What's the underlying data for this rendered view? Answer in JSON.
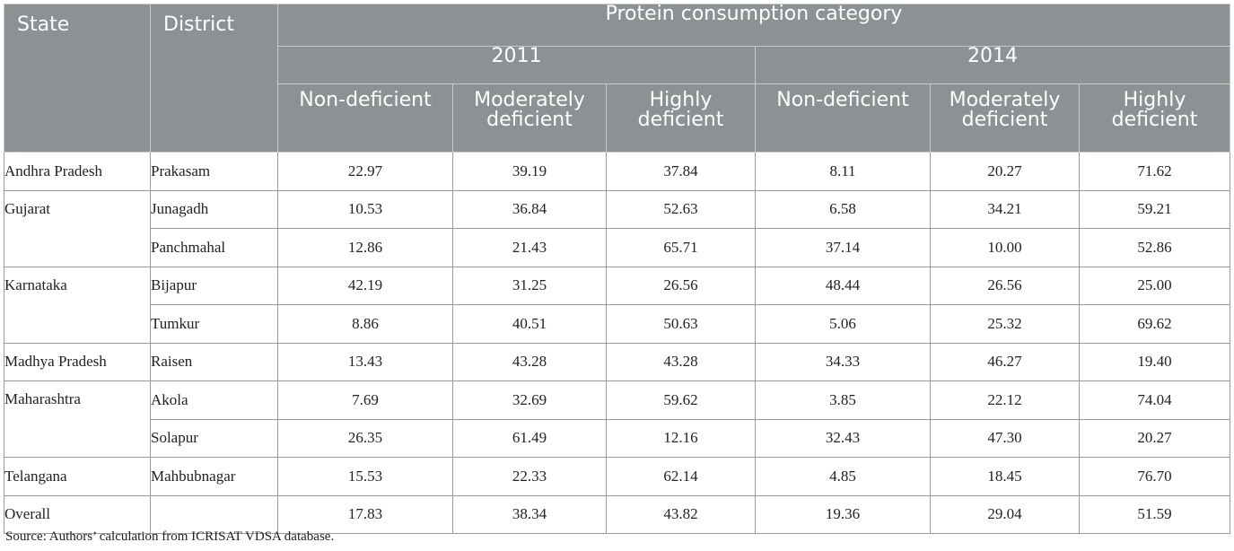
{
  "headers": {
    "state": "State",
    "district": "District",
    "group": "Protein consumption category",
    "years": [
      "2011",
      "2014"
    ],
    "categories": [
      "Non-deficient",
      "Moderately deficient",
      "Highly deficient"
    ]
  },
  "rows": [
    {
      "state": "Andhra Pradesh",
      "district": "Prakasam",
      "values": [
        "22.97",
        "39.19",
        "37.84",
        "8.11",
        "20.27",
        "71.62"
      ]
    },
    {
      "state": "Gujarat",
      "district": "Junagadh",
      "values": [
        "10.53",
        "36.84",
        "52.63",
        "6.58",
        "34.21",
        "59.21"
      ]
    },
    {
      "state": "",
      "district": "Panchmahal",
      "values": [
        "12.86",
        "21.43",
        "65.71",
        "37.14",
        "10.00",
        "52.86"
      ]
    },
    {
      "state": "Karnataka",
      "district": "Bijapur",
      "values": [
        "42.19",
        "31.25",
        "26.56",
        "48.44",
        "26.56",
        "25.00"
      ]
    },
    {
      "state": "",
      "district": "Tumkur",
      "values": [
        "8.86",
        "40.51",
        "50.63",
        "5.06",
        "25.32",
        "69.62"
      ]
    },
    {
      "state": "Madhya Pradesh",
      "district": "Raisen",
      "values": [
        "13.43",
        "43.28",
        "43.28",
        "34.33",
        "46.27",
        "19.40"
      ]
    },
    {
      "state": "Maharashtra",
      "district": "Akola",
      "values": [
        "7.69",
        "32.69",
        "59.62",
        "3.85",
        "22.12",
        "74.04"
      ]
    },
    {
      "state": "",
      "district": "Solapur",
      "values": [
        "26.35",
        "61.49",
        "12.16",
        "32.43",
        "47.30",
        "20.27"
      ]
    },
    {
      "state": "Telangana",
      "district": "Mahbubnagar",
      "values": [
        "15.53",
        "22.33",
        "62.14",
        "4.85",
        "18.45",
        "76.70"
      ]
    },
    {
      "state": "Overall",
      "district": "",
      "values": [
        "17.83",
        "38.34",
        "43.82",
        "19.36",
        "29.04",
        "51.59"
      ]
    }
  ],
  "source": "Source: Authors’ calculation from ICRISAT VDSA database."
}
